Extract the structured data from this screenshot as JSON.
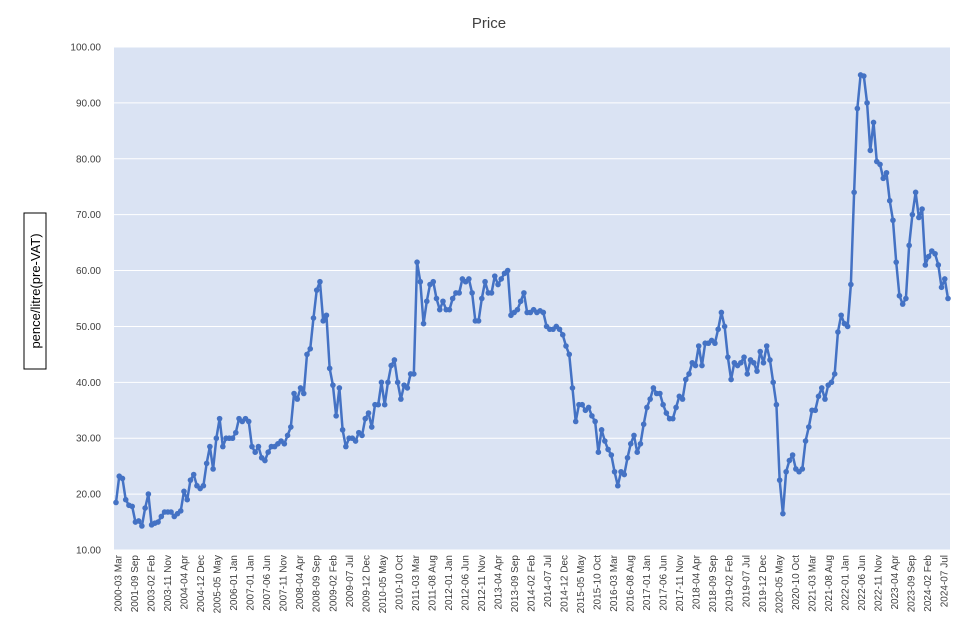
{
  "chart_data": {
    "type": "line",
    "title": "Price",
    "xlabel": "",
    "ylabel": "pence/litre(pre-VAT)",
    "ylim": [
      10,
      100
    ],
    "y_ticks": [
      "10.00",
      "20.00",
      "30.00",
      "40.00",
      "50.00",
      "60.00",
      "70.00",
      "80.00",
      "90.00",
      "100.00"
    ],
    "x_tick_labels": [
      "2000-03 Mar",
      "2001-09 Sep",
      "2003-02 Feb",
      "2003-11 Nov",
      "2004-04 Apr",
      "2004-12 Dec",
      "2005-05 May",
      "2006-01 Jan",
      "2007-01 Jan",
      "2007-06 Jun",
      "2007-11 Nov",
      "2008-04 Apr",
      "2008-09 Sep",
      "2009-02 Feb",
      "2009-07 Jul",
      "2009-12 Dec",
      "2010-05 May",
      "2010-10 Oct",
      "2011-03 Mar",
      "2011-08 Aug",
      "2012-01 Jan",
      "2012-06 Jun",
      "2012-11 Nov",
      "2013-04 Apr",
      "2013-09 Sep",
      "2014-02 Feb",
      "2014-07 Jul",
      "2014-12 Dec",
      "2015-05 May",
      "2015-10 Oct",
      "2016-03 Mar",
      "2016-08 Aug",
      "2017-01 Jan",
      "2017-06 Jun",
      "2017-11 Nov",
      "2018-04 Apr",
      "2018-09 Sep",
      "2019-02 Feb",
      "2019-07 Jul",
      "2019-12 Dec",
      "2020-05 May",
      "2020-10 Oct",
      "2021-03 Mar",
      "2021-08 Aug",
      "2022-01 Jan",
      "2022-06 Jun",
      "2022-11 Nov",
      "2023-04 Apr",
      "2023-09 Sep",
      "2024-02 Feb",
      "2024-07 Jul"
    ],
    "grid": true,
    "legend": "none",
    "colors": {
      "line": "#4472C4",
      "plot_bg": "#DAE3F3",
      "gridline": "#FFFFFF",
      "axis_text": "#404040"
    },
    "series": [
      {
        "values": [
          18.5,
          23.2,
          22.8,
          19.0,
          18.0,
          17.8,
          15.0,
          15.2,
          14.3,
          17.5,
          20.0,
          14.5,
          14.8,
          15.0,
          16.0,
          16.8,
          16.8,
          16.8,
          16.0,
          16.5,
          17.0,
          20.5,
          19.0,
          22.5,
          23.5,
          21.5,
          21.0,
          21.5,
          25.5,
          28.5,
          24.5,
          30.0,
          33.5,
          28.5,
          30.0,
          30.0,
          30.0,
          31.0,
          33.5,
          33.0,
          33.5,
          33.0,
          28.5,
          27.5,
          28.5,
          26.5,
          26.0,
          27.5,
          28.5,
          28.5,
          29.0,
          29.5,
          29.0,
          30.5,
          32.0,
          38.0,
          37.0,
          39.0,
          38.0,
          45.0,
          46.0,
          51.5,
          56.5,
          58.0,
          51.0,
          52.0,
          42.5,
          39.5,
          34.0,
          39.0,
          31.5,
          28.5,
          30.0,
          30.0,
          29.5,
          31.0,
          30.5,
          33.5,
          34.5,
          32.0,
          36.0,
          36.0,
          40.0,
          36.0,
          40.0,
          43.0,
          44.0,
          40.0,
          37.0,
          39.5,
          39.0,
          41.5,
          41.5,
          61.5,
          58.0,
          50.5,
          54.5,
          57.5,
          58.0,
          55.0,
          53.0,
          54.5,
          53.0,
          53.0,
          55.0,
          56.0,
          56.0,
          58.5,
          58.0,
          58.5,
          56.0,
          51.0,
          51.0,
          55.0,
          58.0,
          56.0,
          56.0,
          59.0,
          57.5,
          58.5,
          59.5,
          60.0,
          52.0,
          52.5,
          53.0,
          54.5,
          56.0,
          52.5,
          52.5,
          53.0,
          52.5,
          52.8,
          52.5,
          50.0,
          49.5,
          49.5,
          50.0,
          49.5,
          48.5,
          46.5,
          45.0,
          39.0,
          33.0,
          36.0,
          36.0,
          35.0,
          35.5,
          34.0,
          33.0,
          27.5,
          31.5,
          29.5,
          28.0,
          27.0,
          24.0,
          21.5,
          24.0,
          23.5,
          26.5,
          29.0,
          30.5,
          27.5,
          29.0,
          32.5,
          35.5,
          37.0,
          39.0,
          38.0,
          38.0,
          36.0,
          34.5,
          33.5,
          33.5,
          35.5,
          37.5,
          37.0,
          40.5,
          41.5,
          43.5,
          43.0,
          46.5,
          43.0,
          47.0,
          47.0,
          47.5,
          47.0,
          49.5,
          52.5,
          50.0,
          44.5,
          40.5,
          43.5,
          43.0,
          43.5,
          44.5,
          41.5,
          44.0,
          43.5,
          42.0,
          45.5,
          43.5,
          46.5,
          44.0,
          40.0,
          36.0,
          22.5,
          16.5,
          24.0,
          26.0,
          27.0,
          24.5,
          24.0,
          24.5,
          29.5,
          32.0,
          35.0,
          35.0,
          37.5,
          39.0,
          37.0,
          39.5,
          40.0,
          41.5,
          49.0,
          52.0,
          50.5,
          50.0,
          57.5,
          74.0,
          89.0,
          95.0,
          94.8,
          90.0,
          81.5,
          86.5,
          79.5,
          79.0,
          76.5,
          77.5,
          72.5,
          69.0,
          61.5,
          55.5,
          54.0,
          55.0,
          64.5,
          70.0,
          74.0,
          69.5,
          71.0,
          61.0,
          62.5,
          63.5,
          63.0,
          61.0,
          57.0,
          58.5,
          55.0
        ]
      }
    ]
  }
}
